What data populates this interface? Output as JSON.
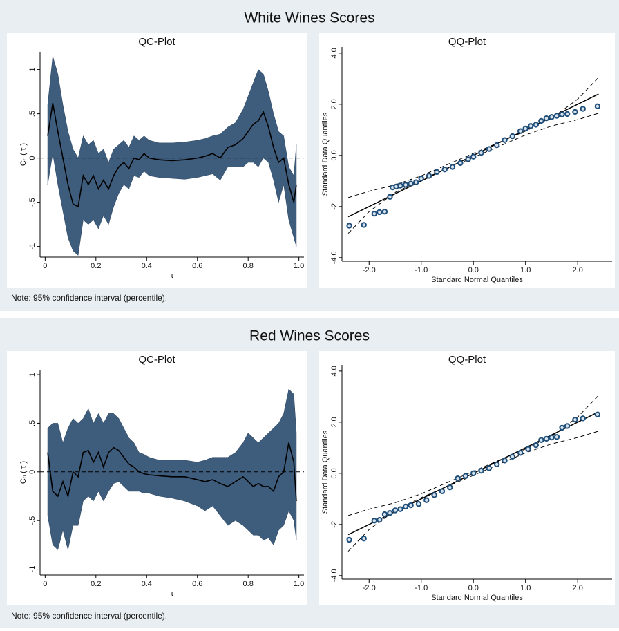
{
  "panels": [
    {
      "title": "White Wines Scores",
      "note": "Note: 95% confidence interval (percentile)."
    },
    {
      "title": "Red Wines Scores",
      "note": "Note: 95% confidence interval (percentile)."
    }
  ],
  "chart_data": [
    {
      "type": "line",
      "title": "QC-Plot",
      "xlabel": "τ",
      "ylabel": "Cₙ ( τ )",
      "xlim": [
        -0.02,
        1.02
      ],
      "ylim": [
        -1.12,
        1.2
      ],
      "xticks": [
        0,
        0.2,
        0.4,
        0.6,
        0.8,
        {
          "value": 1,
          "label": "1.0"
        }
      ],
      "yticks": [
        1,
        {
          "value": 0.5,
          "label": ".5"
        },
        0,
        {
          "value": -0.5,
          "label": "-.5"
        },
        -1
      ],
      "hline": 0,
      "x": [
        0.01,
        0.03,
        0.05,
        0.07,
        0.09,
        0.11,
        0.13,
        0.15,
        0.17,
        0.19,
        0.21,
        0.23,
        0.25,
        0.27,
        0.29,
        0.31,
        0.33,
        0.35,
        0.37,
        0.39,
        0.41,
        0.45,
        0.5,
        0.55,
        0.6,
        0.63,
        0.66,
        0.69,
        0.72,
        0.75,
        0.78,
        0.8,
        0.82,
        0.84,
        0.86,
        0.88,
        0.9,
        0.92,
        0.94,
        0.96,
        0.98,
        0.99
      ],
      "series": [
        {
          "color": "#000000",
          "values": [
            0.25,
            0.62,
            0.3,
            0.0,
            -0.3,
            -0.52,
            -0.55,
            -0.2,
            -0.3,
            -0.2,
            -0.35,
            -0.25,
            -0.35,
            -0.2,
            -0.1,
            -0.05,
            -0.12,
            0.0,
            -0.02,
            0.05,
            0.0,
            -0.02,
            -0.03,
            -0.02,
            0.0,
            0.02,
            0.05,
            0.0,
            0.12,
            0.15,
            0.22,
            0.3,
            0.38,
            0.42,
            0.52,
            0.35,
            0.12,
            -0.05,
            0.0,
            -0.3,
            -0.5,
            -0.3
          ]
        }
      ],
      "band": {
        "color": "#3e5c7c",
        "upper": [
          0.6,
          1.15,
          0.95,
          0.6,
          0.3,
          0.1,
          0.0,
          0.25,
          0.15,
          0.2,
          0.05,
          0.1,
          -0.05,
          0.1,
          0.15,
          0.2,
          0.12,
          0.25,
          0.2,
          0.25,
          0.2,
          0.17,
          0.17,
          0.18,
          0.2,
          0.22,
          0.25,
          0.27,
          0.35,
          0.4,
          0.55,
          0.7,
          0.85,
          1.0,
          0.95,
          0.75,
          0.5,
          0.3,
          0.25,
          -0.1,
          -0.2,
          0.15
        ],
        "lower": [
          -0.3,
          0.05,
          -0.3,
          -0.6,
          -0.9,
          -1.05,
          -1.1,
          -0.7,
          -0.75,
          -0.7,
          -0.8,
          -0.65,
          -0.75,
          -0.55,
          -0.4,
          -0.3,
          -0.35,
          -0.2,
          -0.22,
          -0.15,
          -0.2,
          -0.22,
          -0.23,
          -0.24,
          -0.22,
          -0.2,
          -0.18,
          -0.25,
          -0.1,
          -0.1,
          -0.1,
          -0.05,
          -0.05,
          -0.1,
          0.0,
          -0.05,
          -0.25,
          -0.5,
          -0.3,
          -0.7,
          -0.9,
          -1.0
        ]
      }
    },
    {
      "type": "scatter",
      "title": "QQ-Plot",
      "xlabel": "Standard Normal Quantiles",
      "ylabel": "Standard Data Quantiles",
      "xlim": [
        -2.52,
        2.66
      ],
      "ylim": [
        -4.14,
        4.24
      ],
      "xticks": [
        {
          "value": -2,
          "label": "-2.0"
        },
        {
          "value": -1,
          "label": "-1.0"
        },
        {
          "value": 0,
          "label": "0.0"
        },
        {
          "value": 1,
          "label": "1.0"
        },
        {
          "value": 2,
          "label": "2.0"
        }
      ],
      "yticks": [
        {
          "value": 4,
          "label": "4.0"
        },
        {
          "value": 2,
          "label": "2.0"
        },
        {
          "value": 0,
          "label": "0.0"
        },
        {
          "value": -2,
          "label": "-2"
        },
        {
          "value": -4,
          "label": "-4.0"
        }
      ],
      "color": "#1f4e79",
      "x": [
        -2.38,
        -2.1,
        -1.9,
        -1.8,
        -1.7,
        -1.6,
        -1.55,
        -1.48,
        -1.4,
        -1.3,
        -1.2,
        -1.1,
        -1.0,
        -0.85,
        -0.7,
        -0.55,
        -0.4,
        -0.25,
        -0.1,
        0.0,
        0.15,
        0.3,
        0.45,
        0.6,
        0.75,
        0.9,
        1.0,
        1.1,
        1.2,
        1.3,
        1.4,
        1.5,
        1.6,
        1.7,
        1.8,
        1.95,
        2.1,
        2.38
      ],
      "y": [
        -2.75,
        -2.72,
        -2.28,
        -2.22,
        -2.2,
        -1.62,
        -1.25,
        -1.22,
        -1.18,
        -1.15,
        -1.1,
        -1.05,
        -0.9,
        -0.8,
        -0.65,
        -0.55,
        -0.45,
        -0.3,
        -0.15,
        -0.05,
        0.1,
        0.25,
        0.4,
        0.6,
        0.75,
        0.95,
        1.05,
        1.15,
        1.2,
        1.35,
        1.45,
        1.5,
        1.55,
        1.6,
        1.62,
        1.7,
        1.82,
        1.92
      ],
      "fit_line": {
        "x": [
          -2.4,
          2.4
        ],
        "y": [
          -2.4,
          2.4
        ]
      },
      "bands": {
        "x": [
          -2.4,
          -2,
          -1.5,
          -1,
          0,
          1,
          1.5,
          2,
          2.4
        ],
        "upper": [
          -1.65,
          -1.4,
          -1.15,
          -0.8,
          0.08,
          0.95,
          1.45,
          2.2,
          3.05
        ],
        "lower": [
          -3.05,
          -2.2,
          -1.45,
          -0.95,
          -0.08,
          0.8,
          1.15,
          1.4,
          1.65
        ]
      }
    },
    {
      "type": "line",
      "title": "QC-Plot",
      "xlabel": "τ",
      "ylabel": "Cₙ ( τ )",
      "xlim": [
        -0.02,
        1.02
      ],
      "ylim": [
        -1.06,
        1.05
      ],
      "xticks": [
        0,
        0.2,
        0.4,
        0.6,
        0.8,
        {
          "value": 1,
          "label": "1.0"
        }
      ],
      "yticks": [
        1,
        {
          "value": 0.5,
          "label": ".5"
        },
        0,
        {
          "value": -0.5,
          "label": "-.5"
        },
        -1
      ],
      "hline": 0,
      "x": [
        0.01,
        0.03,
        0.05,
        0.07,
        0.09,
        0.11,
        0.13,
        0.15,
        0.17,
        0.19,
        0.21,
        0.23,
        0.25,
        0.27,
        0.29,
        0.31,
        0.33,
        0.35,
        0.37,
        0.39,
        0.41,
        0.45,
        0.5,
        0.55,
        0.6,
        0.63,
        0.66,
        0.69,
        0.72,
        0.75,
        0.78,
        0.8,
        0.82,
        0.84,
        0.86,
        0.88,
        0.9,
        0.92,
        0.94,
        0.96,
        0.98,
        0.99
      ],
      "series": [
        {
          "color": "#000000",
          "values": [
            0.2,
            -0.2,
            -0.25,
            -0.1,
            -0.25,
            0.0,
            -0.05,
            0.2,
            0.22,
            0.1,
            0.2,
            0.05,
            0.2,
            0.25,
            0.22,
            0.15,
            0.08,
            0.05,
            0.0,
            -0.02,
            -0.03,
            -0.04,
            -0.05,
            -0.05,
            -0.08,
            -0.1,
            -0.08,
            -0.12,
            -0.15,
            -0.1,
            -0.05,
            -0.1,
            -0.15,
            -0.12,
            -0.15,
            -0.15,
            -0.2,
            -0.05,
            0.0,
            0.3,
            0.1,
            -0.3
          ]
        }
      ],
      "band": {
        "color": "#3e5c7c",
        "upper": [
          0.45,
          0.5,
          0.5,
          0.3,
          0.45,
          0.55,
          0.5,
          0.55,
          0.65,
          0.5,
          0.6,
          0.5,
          0.6,
          0.6,
          0.55,
          0.45,
          0.35,
          0.3,
          0.2,
          0.18,
          0.15,
          0.12,
          0.12,
          0.12,
          0.1,
          0.12,
          0.15,
          0.15,
          0.15,
          0.2,
          0.3,
          0.4,
          0.35,
          0.3,
          0.35,
          0.4,
          0.45,
          0.5,
          0.6,
          0.85,
          0.8,
          0.4
        ],
        "lower": [
          -0.45,
          -0.75,
          -0.8,
          -0.6,
          -0.8,
          -0.55,
          -0.55,
          -0.3,
          -0.25,
          -0.3,
          -0.2,
          -0.3,
          -0.2,
          -0.12,
          -0.1,
          -0.15,
          -0.2,
          -0.2,
          -0.2,
          -0.22,
          -0.22,
          -0.25,
          -0.27,
          -0.3,
          -0.35,
          -0.4,
          -0.35,
          -0.45,
          -0.55,
          -0.5,
          -0.55,
          -0.6,
          -0.65,
          -0.65,
          -0.7,
          -0.68,
          -0.75,
          -0.6,
          -0.55,
          -0.4,
          -0.5,
          -0.7
        ]
      }
    },
    {
      "type": "scatter",
      "title": "QQ-Plot",
      "xlabel": "Standard Normal Quantiles",
      "ylabel": "Standard Data Quantiles",
      "xlim": [
        -2.52,
        2.66
      ],
      "ylim": [
        -4.14,
        4.24
      ],
      "xticks": [
        {
          "value": -2,
          "label": "-2.0"
        },
        {
          "value": -1,
          "label": "-1.0"
        },
        {
          "value": 0,
          "label": "0.0"
        },
        {
          "value": 1,
          "label": "1.0"
        },
        {
          "value": 2,
          "label": "2.0"
        }
      ],
      "yticks": [
        {
          "value": 4,
          "label": "4.0"
        },
        {
          "value": 2,
          "label": "2.0"
        },
        {
          "value": 0,
          "label": "0.0"
        },
        {
          "value": -2,
          "label": "-2"
        },
        {
          "value": -4,
          "label": "-4.0"
        }
      ],
      "color": "#1f4e79",
      "x": [
        -2.38,
        -2.1,
        -1.9,
        -1.8,
        -1.7,
        -1.6,
        -1.5,
        -1.4,
        -1.3,
        -1.2,
        -1.05,
        -0.9,
        -0.75,
        -0.6,
        -0.45,
        -0.3,
        -0.15,
        0.0,
        0.15,
        0.3,
        0.45,
        0.6,
        0.75,
        0.9,
        1.05,
        1.2,
        1.3,
        1.4,
        1.5,
        1.6,
        1.7,
        1.8,
        1.95,
        2.1,
        2.38
      ],
      "y": [
        -2.6,
        -2.55,
        -1.85,
        -1.82,
        -1.6,
        -1.55,
        -1.45,
        -1.4,
        -1.3,
        -1.25,
        -1.2,
        -1.05,
        -0.85,
        -0.7,
        -0.55,
        -0.2,
        -0.1,
        0.0,
        0.1,
        0.2,
        0.35,
        0.5,
        0.65,
        0.8,
        0.95,
        1.1,
        1.3,
        1.35,
        1.4,
        1.42,
        1.78,
        1.85,
        2.1,
        2.15,
        2.3
      ],
      "fit_line": {
        "x": [
          -2.4,
          2.4
        ],
        "y": [
          -2.4,
          2.4
        ]
      },
      "bands": {
        "x": [
          -2.4,
          -2,
          -1.5,
          -1,
          0,
          1,
          1.5,
          2,
          2.4
        ],
        "upper": [
          -1.65,
          -1.4,
          -1.15,
          -0.8,
          0.08,
          0.95,
          1.45,
          2.2,
          3.05
        ],
        "lower": [
          -3.05,
          -2.2,
          -1.45,
          -0.95,
          -0.08,
          0.8,
          1.15,
          1.4,
          1.65
        ]
      }
    }
  ]
}
